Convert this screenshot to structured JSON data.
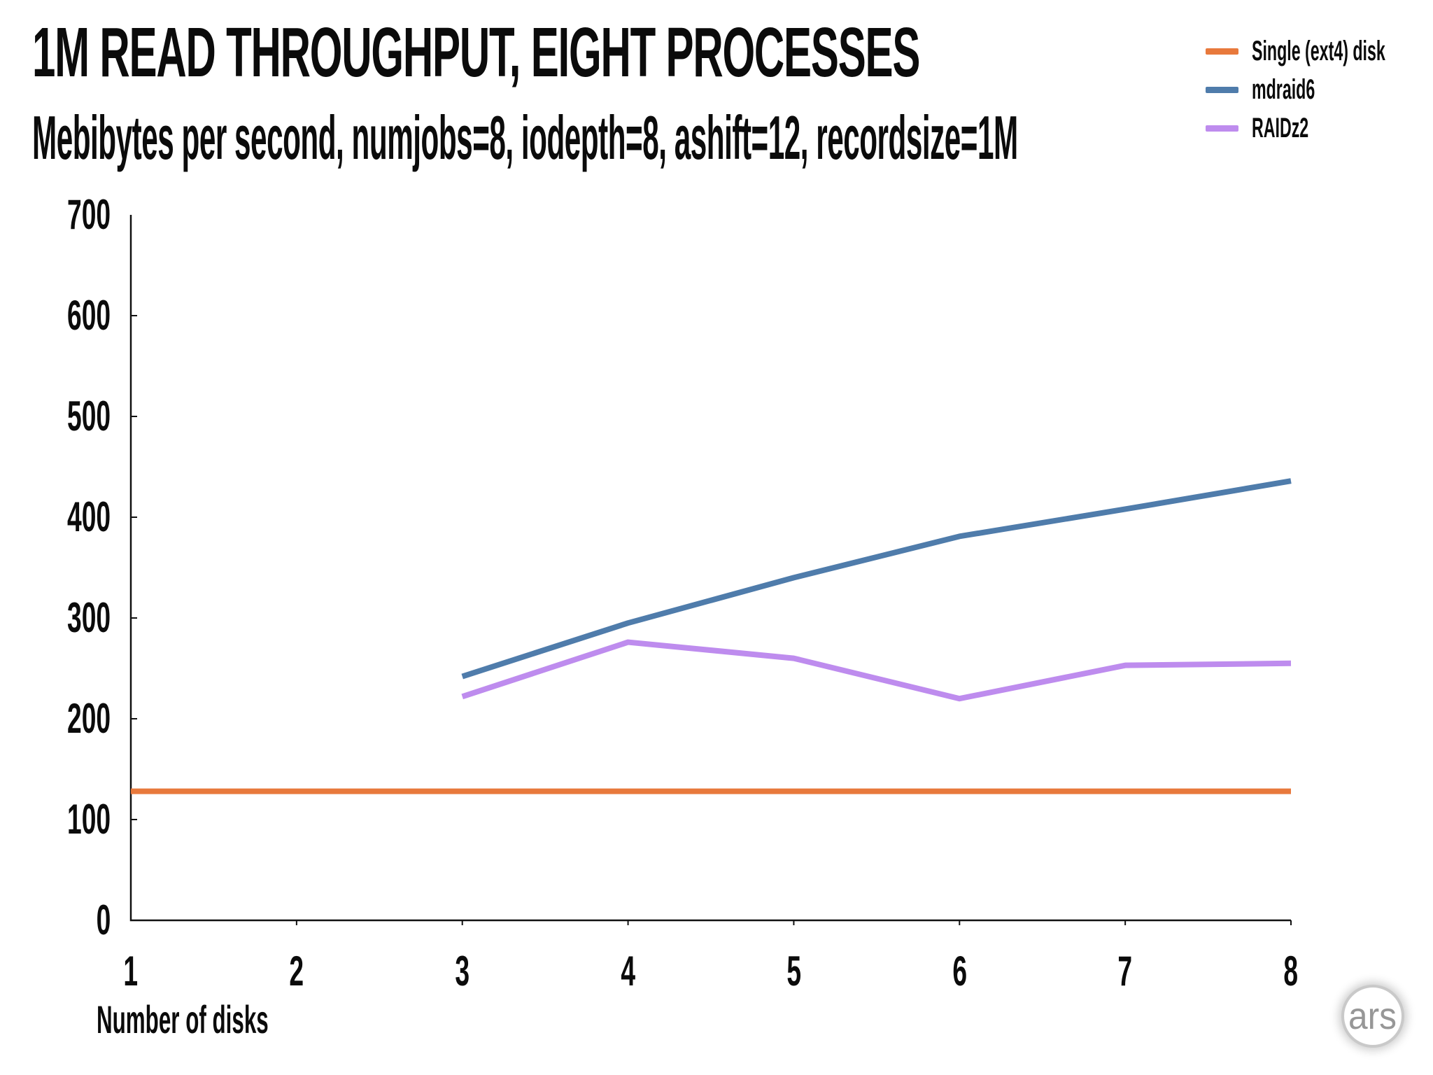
{
  "chart_data": {
    "type": "line",
    "title": "1M READ THROUGHPUT, EIGHT PROCESSES",
    "subtitle": "Mebibytes per second, numjobs=8, iodepth=8, ashift=12, recordsize=1M",
    "xlabel": "Number of disks",
    "ylabel": "",
    "xlim": [
      1,
      8
    ],
    "ylim": [
      0,
      700
    ],
    "xticks": [
      1,
      2,
      3,
      4,
      5,
      6,
      7,
      8
    ],
    "yticks": [
      0,
      100,
      200,
      300,
      400,
      500,
      600,
      700
    ],
    "grid": false,
    "legend_position": "top-right",
    "axis_color": "#111111",
    "line_width": 8,
    "series": [
      {
        "name": "Single (ext4) disk",
        "color": "#E8793C",
        "x": [
          1,
          2,
          3,
          4,
          5,
          6,
          7,
          8
        ],
        "y": [
          128,
          128,
          128,
          128,
          128,
          128,
          128,
          128
        ]
      },
      {
        "name": "mdraid6",
        "color": "#4F7CAB",
        "x": [
          3,
          4,
          5,
          6,
          7,
          8
        ],
        "y": [
          242,
          295,
          340,
          381,
          408,
          436
        ]
      },
      {
        "name": "RAIDz2",
        "color": "#BE8CEE",
        "x": [
          3,
          4,
          5,
          6,
          7,
          8
        ],
        "y": [
          222,
          276,
          260,
          220,
          253,
          255
        ]
      }
    ]
  },
  "branding": {
    "logo_text": "ars"
  }
}
